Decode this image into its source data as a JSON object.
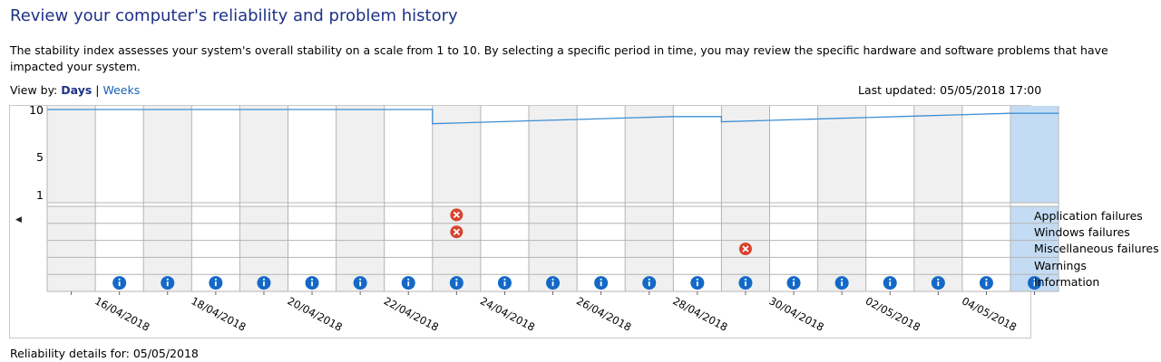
{
  "page": {
    "title": "Review your computer's reliability and problem history",
    "description": "The stability index assesses your system's overall stability on a scale from 1 to 10. By selecting a specific period in time, you may review the specific hardware and software problems that have impacted your system.",
    "view_by_label": "View by:",
    "view_days": "Days",
    "view_separator": "|",
    "view_weeks": "Weeks",
    "last_updated": "Last updated: 05/05/2018 17:00",
    "footer": "Reliability details for: 05/05/2018"
  },
  "chart_data": {
    "type": "line",
    "y_ticks": [
      "10",
      "5",
      "1"
    ],
    "ylim": [
      1,
      10
    ],
    "days": [
      "15/04",
      "16/04",
      "17/04",
      "18/04",
      "19/04",
      "20/04",
      "21/04",
      "22/04",
      "23/04",
      "24/04",
      "25/04",
      "26/04",
      "27/04",
      "28/04",
      "29/04",
      "30/04",
      "01/05",
      "02/05",
      "03/05",
      "04/05",
      "05/05"
    ],
    "x_labels": [
      "16/04/2018",
      "18/04/2018",
      "20/04/2018",
      "22/04/2018",
      "24/04/2018",
      "26/04/2018",
      "28/04/2018",
      "30/04/2018",
      "02/05/2018",
      "04/05/2018"
    ],
    "stability_index": [
      10,
      10,
      10,
      10,
      10,
      10,
      10,
      10,
      8.5,
      8.65,
      8.8,
      8.95,
      9.1,
      9.25,
      8.7,
      8.85,
      9.0,
      9.15,
      9.3,
      9.45,
      9.6
    ],
    "selected_day": "05/05",
    "rows": [
      "Application failures",
      "Windows failures",
      "Miscellaneous failures",
      "Warnings",
      "Information"
    ],
    "events": [
      {
        "row": "Application failures",
        "day": "23/04",
        "kind": "error"
      },
      {
        "row": "Windows failures",
        "day": "23/04",
        "kind": "error"
      },
      {
        "row": "Miscellaneous failures",
        "day": "29/04",
        "kind": "error"
      },
      {
        "row": "Information",
        "day": "16/04",
        "kind": "info"
      },
      {
        "row": "Information",
        "day": "17/04",
        "kind": "info"
      },
      {
        "row": "Information",
        "day": "18/04",
        "kind": "info"
      },
      {
        "row": "Information",
        "day": "19/04",
        "kind": "info"
      },
      {
        "row": "Information",
        "day": "20/04",
        "kind": "info"
      },
      {
        "row": "Information",
        "day": "21/04",
        "kind": "info"
      },
      {
        "row": "Information",
        "day": "22/04",
        "kind": "info"
      },
      {
        "row": "Information",
        "day": "23/04",
        "kind": "info"
      },
      {
        "row": "Information",
        "day": "24/04",
        "kind": "info"
      },
      {
        "row": "Information",
        "day": "25/04",
        "kind": "info"
      },
      {
        "row": "Information",
        "day": "26/04",
        "kind": "info"
      },
      {
        "row": "Information",
        "day": "27/04",
        "kind": "info"
      },
      {
        "row": "Information",
        "day": "28/04",
        "kind": "info"
      },
      {
        "row": "Information",
        "day": "29/04",
        "kind": "info"
      },
      {
        "row": "Information",
        "day": "30/04",
        "kind": "info"
      },
      {
        "row": "Information",
        "day": "01/05",
        "kind": "info"
      },
      {
        "row": "Information",
        "day": "02/05",
        "kind": "info"
      },
      {
        "row": "Information",
        "day": "03/05",
        "kind": "info"
      },
      {
        "row": "Information",
        "day": "04/05",
        "kind": "info"
      },
      {
        "row": "Information",
        "day": "05/05",
        "kind": "info"
      }
    ],
    "colors": {
      "line": "#3d8ed4",
      "shade": "#f0f0f0",
      "selected": "#c4dcf3",
      "grid": "#b4b4b4",
      "error": "#d8432f",
      "info": "#1469c7"
    }
  },
  "icons": {
    "prev": "left-arrow-icon",
    "next": "right-arrow-icon",
    "error": "error-icon",
    "info": "info-icon"
  }
}
